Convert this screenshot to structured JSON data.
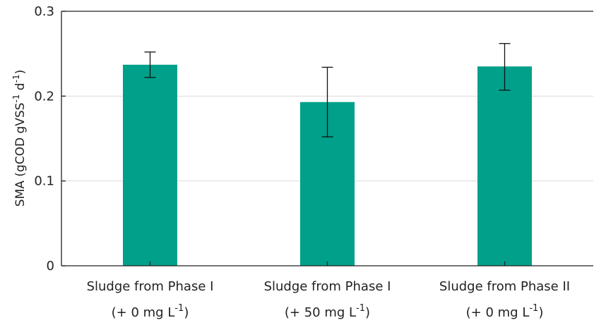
{
  "chart_data": {
    "type": "bar",
    "categories": [
      {
        "line1": "Sludge from Phase I",
        "line2": "(+ 0 mg L",
        "sup": "-1",
        "close": ")"
      },
      {
        "line1": "Sludge from Phase I",
        "line2": "(+ 50 mg L",
        "sup": "-1",
        "close": ")"
      },
      {
        "line1": "Sludge from Phase II",
        "line2": "(+ 0 mg L",
        "sup": "-1",
        "close": ")"
      }
    ],
    "values": [
      0.237,
      0.193,
      0.235
    ],
    "error_low": [
      0.222,
      0.152,
      0.207
    ],
    "error_high": [
      0.252,
      0.234,
      0.262
    ],
    "ylabel_parts": {
      "pre": "SMA (gCOD gVSS",
      "sup1": "-1",
      "mid": " d",
      "sup2": "-1",
      "post": ")"
    },
    "ylim": [
      0,
      0.3
    ],
    "yticks": [
      {
        "value": 0,
        "label": "0"
      },
      {
        "value": 0.1,
        "label": "0.1"
      },
      {
        "value": 0.2,
        "label": "0.2"
      },
      {
        "value": 0.3,
        "label": "0.3"
      }
    ],
    "grid": true,
    "bar_color": "#00a08a"
  }
}
